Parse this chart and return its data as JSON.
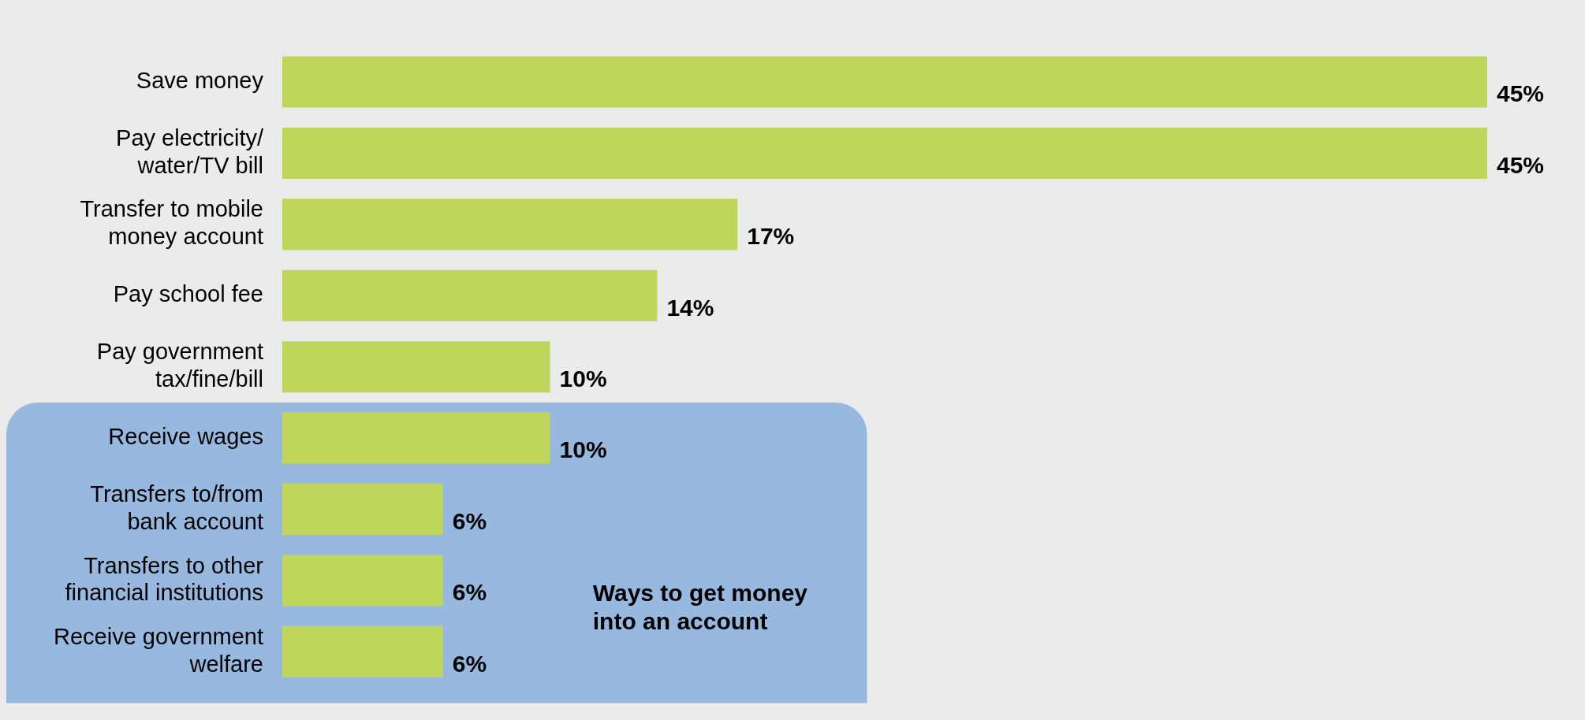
{
  "chart_data": {
    "type": "bar",
    "orientation": "horizontal",
    "categories": [
      "Save money",
      "Pay electricity/\nwater/TV bill",
      "Transfer to mobile\nmoney account",
      "Pay school fee",
      "Pay government\ntax/fine/bill",
      "Receive wages",
      "Transfers to/from\nbank account",
      "Transfers to other\nfinancial institutions",
      "Receive government\nwelfare"
    ],
    "values": [
      45,
      45,
      17,
      14,
      10,
      10,
      6,
      6,
      6
    ],
    "value_labels": [
      "45%",
      "45%",
      "17%",
      "14%",
      "10%",
      "10%",
      "6%",
      "6%",
      "6%"
    ],
    "color": "#bfd55b",
    "bands": [
      {
        "axis": "y",
        "from": "Receive wages",
        "to": "Receive government\nwelfare",
        "label": "Ways to get money\ninto an account",
        "color": "#97b8df"
      }
    ],
    "grid": false,
    "legend": false
  }
}
